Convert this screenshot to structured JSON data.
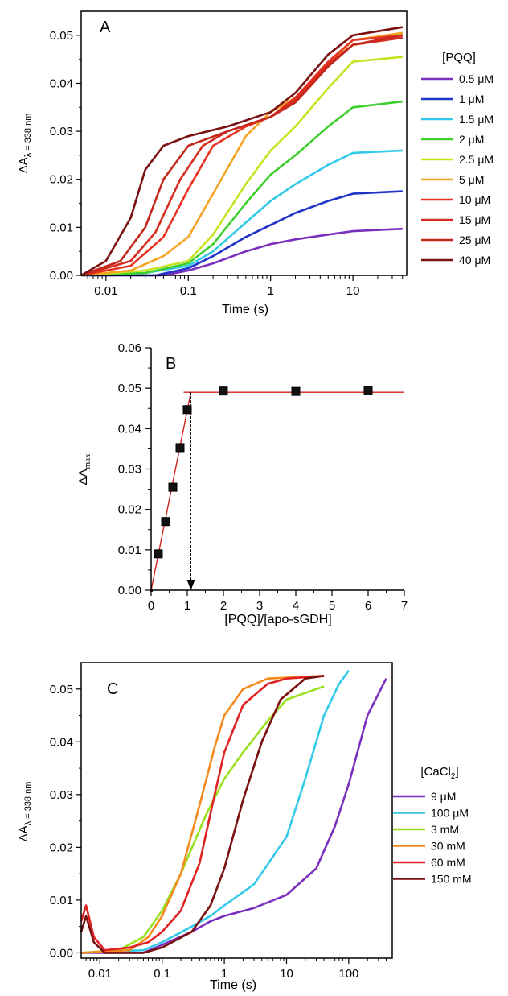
{
  "chart_data": [
    {
      "panel_label": "A",
      "type": "line",
      "x_scale": "log",
      "xlabel": "Time (s)",
      "ylabel_main": "ΔA",
      "ylabel_sub": "λ = 338 nm",
      "xlim": [
        0.005,
        45
      ],
      "ylim": [
        0,
        0.055
      ],
      "x_ticks": [
        0.01,
        0.1,
        1,
        10
      ],
      "x_tick_labels": [
        "0.01",
        "0.1",
        "1",
        "10"
      ],
      "y_ticks": [
        0,
        0.01,
        0.02,
        0.03,
        0.04,
        0.05
      ],
      "y_tick_labels": [
        "0.00",
        "0.01",
        "0.02",
        "0.03",
        "0.04",
        "0.05"
      ],
      "legend_title": "[PQQ]",
      "legend_placement": "right, outside",
      "fit_lines": "dashed black fits overlay each trace",
      "series": [
        {
          "name": "0.5 μM",
          "color": "#7b2fbe",
          "points": [
            [
              0.005,
              0.0
            ],
            [
              0.05,
              0.0
            ],
            [
              0.1,
              0.001
            ],
            [
              0.2,
              0.0025
            ],
            [
              0.5,
              0.005
            ],
            [
              1,
              0.0065
            ],
            [
              2,
              0.0075
            ],
            [
              5,
              0.0085
            ],
            [
              10,
              0.0092
            ],
            [
              40,
              0.0097
            ]
          ]
        },
        {
          "name": "1 μM",
          "color": "#1f33c6",
          "points": [
            [
              0.005,
              0.0
            ],
            [
              0.04,
              0.0
            ],
            [
              0.1,
              0.0015
            ],
            [
              0.2,
              0.004
            ],
            [
              0.5,
              0.008
            ],
            [
              1,
              0.0105
            ],
            [
              2,
              0.013
            ],
            [
              5,
              0.0155
            ],
            [
              10,
              0.017
            ],
            [
              40,
              0.0175
            ]
          ]
        },
        {
          "name": "1.5 μM",
          "color": "#33c9e8",
          "points": [
            [
              0.005,
              0.0
            ],
            [
              0.03,
              0.0005
            ],
            [
              0.1,
              0.002
            ],
            [
              0.2,
              0.005
            ],
            [
              0.5,
              0.011
            ],
            [
              1,
              0.0155
            ],
            [
              2,
              0.019
            ],
            [
              5,
              0.023
            ],
            [
              10,
              0.0255
            ],
            [
              40,
              0.026
            ]
          ]
        },
        {
          "name": "2 μM",
          "color": "#3ecf2e",
          "points": [
            [
              0.005,
              0.0
            ],
            [
              0.03,
              0.0005
            ],
            [
              0.1,
              0.0025
            ],
            [
              0.2,
              0.0065
            ],
            [
              0.5,
              0.015
            ],
            [
              1,
              0.021
            ],
            [
              2,
              0.025
            ],
            [
              5,
              0.031
            ],
            [
              10,
              0.035
            ],
            [
              40,
              0.0362
            ]
          ]
        },
        {
          "name": "2.5 μM",
          "color": "#c7e21f",
          "points": [
            [
              0.005,
              0.0
            ],
            [
              0.03,
              0.001
            ],
            [
              0.1,
              0.003
            ],
            [
              0.2,
              0.0085
            ],
            [
              0.5,
              0.019
            ],
            [
              1,
              0.026
            ],
            [
              2,
              0.031
            ],
            [
              5,
              0.039
            ],
            [
              10,
              0.0445
            ],
            [
              40,
              0.0455
            ]
          ]
        },
        {
          "name": "5 μM",
          "color": "#f4a425",
          "points": [
            [
              0.005,
              0.0
            ],
            [
              0.02,
              0.001
            ],
            [
              0.05,
              0.004
            ],
            [
              0.1,
              0.008
            ],
            [
              0.2,
              0.017
            ],
            [
              0.5,
              0.029
            ],
            [
              1,
              0.034
            ],
            [
              2,
              0.037
            ],
            [
              5,
              0.044
            ],
            [
              10,
              0.049
            ],
            [
              40,
              0.0505
            ]
          ]
        },
        {
          "name": "10 μM",
          "color": "#e83222",
          "points": [
            [
              0.005,
              0.0
            ],
            [
              0.02,
              0.002
            ],
            [
              0.05,
              0.008
            ],
            [
              0.1,
              0.018
            ],
            [
              0.2,
              0.027
            ],
            [
              0.5,
              0.031
            ],
            [
              1,
              0.033
            ],
            [
              2,
              0.037
            ],
            [
              5,
              0.0445
            ],
            [
              10,
              0.049
            ],
            [
              40,
              0.05
            ]
          ]
        },
        {
          "name": "15 μM",
          "color": "#d62b1f",
          "points": [
            [
              0.005,
              0.0
            ],
            [
              0.02,
              0.003
            ],
            [
              0.04,
              0.009
            ],
            [
              0.08,
              0.02
            ],
            [
              0.15,
              0.027
            ],
            [
              0.3,
              0.03
            ],
            [
              1,
              0.033
            ],
            [
              2,
              0.0365
            ],
            [
              5,
              0.044
            ],
            [
              10,
              0.048
            ],
            [
              40,
              0.0495
            ]
          ]
        },
        {
          "name": "25 μM",
          "color": "#c4281d",
          "points": [
            [
              0.005,
              0.0
            ],
            [
              0.015,
              0.003
            ],
            [
              0.03,
              0.01
            ],
            [
              0.05,
              0.02
            ],
            [
              0.1,
              0.027
            ],
            [
              0.3,
              0.03
            ],
            [
              1,
              0.033
            ],
            [
              2,
              0.036
            ],
            [
              5,
              0.0435
            ],
            [
              10,
              0.048
            ],
            [
              40,
              0.05
            ]
          ]
        },
        {
          "name": "40 μM",
          "color": "#7a1010",
          "points": [
            [
              0.005,
              0.0
            ],
            [
              0.01,
              0.003
            ],
            [
              0.02,
              0.012
            ],
            [
              0.03,
              0.022
            ],
            [
              0.05,
              0.027
            ],
            [
              0.1,
              0.029
            ],
            [
              0.3,
              0.031
            ],
            [
              1,
              0.034
            ],
            [
              2,
              0.038
            ],
            [
              5,
              0.046
            ],
            [
              10,
              0.05
            ],
            [
              40,
              0.0517
            ]
          ]
        }
      ]
    },
    {
      "panel_label": "B",
      "type": "scatter",
      "xlabel": "[PQQ]/[apo-sGDH]",
      "ylabel_main": "ΔA",
      "ylabel_sub": "max",
      "xlim": [
        0,
        7
      ],
      "ylim": [
        0,
        0.06
      ],
      "x_ticks": [
        0,
        1,
        2,
        3,
        4,
        5,
        6,
        7
      ],
      "x_tick_labels": [
        "0",
        "1",
        "2",
        "3",
        "4",
        "5",
        "6",
        "7"
      ],
      "y_ticks": [
        0,
        0.01,
        0.02,
        0.03,
        0.04,
        0.05,
        0.06
      ],
      "y_tick_labels": [
        "0.00",
        "0.01",
        "0.02",
        "0.03",
        "0.04",
        "0.05",
        "0.06"
      ],
      "points": [
        [
          0,
          0
        ],
        [
          0.2,
          0.009
        ],
        [
          0.4,
          0.017
        ],
        [
          0.6,
          0.0255
        ],
        [
          0.8,
          0.0353
        ],
        [
          1.0,
          0.0447
        ],
        [
          2,
          0.0493
        ],
        [
          4,
          0.0492
        ],
        [
          6,
          0.0494
        ]
      ],
      "fit_line_rising": [
        [
          0,
          0
        ],
        [
          1.1,
          0.049
        ]
      ],
      "fit_line_plateau": [
        [
          0.9,
          0.049
        ],
        [
          7,
          0.049
        ]
      ],
      "intersection_marker_x": 1.1,
      "line_color": "#d42020"
    },
    {
      "panel_label": "C",
      "type": "line",
      "x_scale": "log",
      "xlabel": "Time (s)",
      "ylabel_main": "ΔA",
      "ylabel_sub": "λ = 338 nm",
      "xlim": [
        0.005,
        500
      ],
      "ylim": [
        -0.001,
        0.055
      ],
      "x_ticks": [
        0.01,
        0.1,
        1,
        10,
        100
      ],
      "x_tick_labels": [
        "0.01",
        "0.1",
        "1",
        "10",
        "100"
      ],
      "y_ticks": [
        0,
        0.01,
        0.02,
        0.03,
        0.04,
        0.05
      ],
      "y_tick_labels": [
        "0.00",
        "0.01",
        "0.02",
        "0.03",
        "0.04",
        "0.05"
      ],
      "legend_title_main": "[CaCl",
      "legend_title_sub": "2",
      "legend_title_end": "]",
      "legend_placement": "right, outside",
      "series": [
        {
          "name": "9 μM",
          "color": "#7b2fbe",
          "points": [
            [
              0.005,
              0.0
            ],
            [
              0.05,
              0.0
            ],
            [
              0.1,
              0.0015
            ],
            [
              0.3,
              0.004
            ],
            [
              0.6,
              0.006
            ],
            [
              1,
              0.007
            ],
            [
              3,
              0.0085
            ],
            [
              10,
              0.011
            ],
            [
              30,
              0.016
            ],
            [
              60,
              0.024
            ],
            [
              100,
              0.032
            ],
            [
              200,
              0.045
            ],
            [
              400,
              0.052
            ]
          ]
        },
        {
          "name": "100 μM",
          "color": "#33c9e8",
          "points": [
            [
              0.005,
              0.0
            ],
            [
              0.05,
              0.0005
            ],
            [
              0.1,
              0.002
            ],
            [
              0.3,
              0.005
            ],
            [
              0.6,
              0.007
            ],
            [
              1,
              0.009
            ],
            [
              3,
              0.013
            ],
            [
              10,
              0.022
            ],
            [
              20,
              0.033
            ],
            [
              40,
              0.045
            ],
            [
              70,
              0.051
            ],
            [
              100,
              0.0535
            ]
          ]
        },
        {
          "name": "3 mM",
          "color": "#9be01f",
          "points": [
            [
              0.005,
              0.0
            ],
            [
              0.02,
              0.0005
            ],
            [
              0.05,
              0.003
            ],
            [
              0.1,
              0.008
            ],
            [
              0.2,
              0.015
            ],
            [
              0.5,
              0.026
            ],
            [
              1,
              0.033
            ],
            [
              2,
              0.038
            ],
            [
              5,
              0.044
            ],
            [
              10,
              0.048
            ],
            [
              40,
              0.0505
            ]
          ]
        },
        {
          "name": "30 mM",
          "color": "#f48a1e",
          "points": [
            [
              0.005,
              0.0
            ],
            [
              0.03,
              0.0005
            ],
            [
              0.06,
              0.003
            ],
            [
              0.1,
              0.007
            ],
            [
              0.2,
              0.015
            ],
            [
              0.4,
              0.028
            ],
            [
              0.7,
              0.039
            ],
            [
              1,
              0.045
            ],
            [
              2,
              0.05
            ],
            [
              5,
              0.052
            ],
            [
              40,
              0.0525
            ]
          ]
        },
        {
          "name": "60 mM",
          "color": "#e02222",
          "points": [
            [
              0.005,
              0.006
            ],
            [
              0.006,
              0.009
            ],
            [
              0.008,
              0.003
            ],
            [
              0.012,
              0.0005
            ],
            [
              0.03,
              0.001
            ],
            [
              0.06,
              0.002
            ],
            [
              0.1,
              0.004
            ],
            [
              0.2,
              0.008
            ],
            [
              0.4,
              0.017
            ],
            [
              0.7,
              0.03
            ],
            [
              1,
              0.038
            ],
            [
              2,
              0.047
            ],
            [
              5,
              0.051
            ],
            [
              10,
              0.052
            ],
            [
              40,
              0.0525
            ]
          ]
        },
        {
          "name": "150 mM",
          "color": "#7a1010",
          "points": [
            [
              0.005,
              0.004
            ],
            [
              0.006,
              0.007
            ],
            [
              0.008,
              0.002
            ],
            [
              0.012,
              0.0
            ],
            [
              0.05,
              0.0
            ],
            [
              0.1,
              0.001
            ],
            [
              0.3,
              0.004
            ],
            [
              0.6,
              0.009
            ],
            [
              1,
              0.016
            ],
            [
              2,
              0.029
            ],
            [
              4,
              0.04
            ],
            [
              8,
              0.048
            ],
            [
              20,
              0.052
            ],
            [
              40,
              0.0525
            ]
          ]
        }
      ]
    }
  ]
}
